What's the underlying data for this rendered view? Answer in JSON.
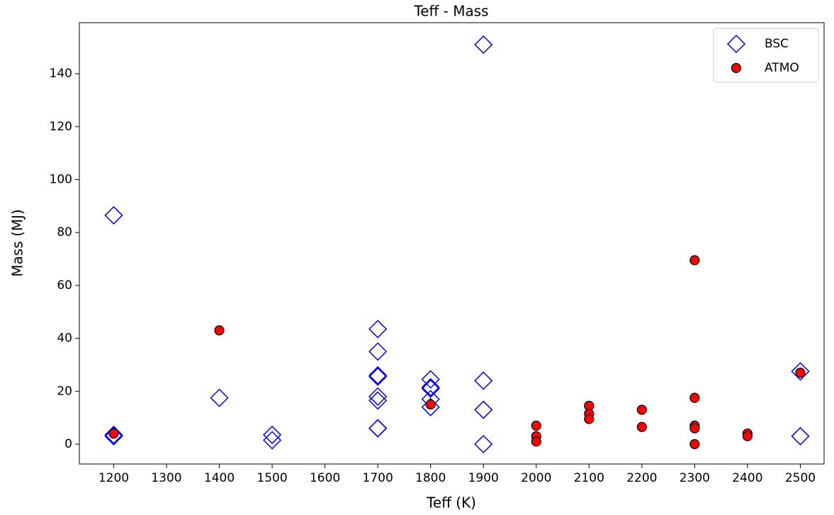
{
  "chart_data": {
    "type": "scatter",
    "title": "Teff - Mass",
    "x_label": "Teff (K)",
    "y_label": "Mass (MJ)",
    "xlim": [
      1135,
      2545
    ],
    "ylim": [
      -7.5,
      159.3
    ],
    "xticks": [
      1200,
      1300,
      1400,
      1500,
      1600,
      1700,
      1800,
      1900,
      2000,
      2100,
      2200,
      2300,
      2400,
      2500
    ],
    "yticks": [
      0,
      20,
      40,
      60,
      80,
      100,
      120,
      140
    ],
    "grid": false,
    "legend": "upper right",
    "series": [
      {
        "name": "BSC",
        "color": "#0000ff",
        "marker": "diamond",
        "x": [
          1200,
          1200,
          1200,
          1400,
          1500,
          1500,
          1700,
          1700,
          1700,
          1700,
          1700,
          1700,
          1700,
          1700,
          1800,
          1800,
          1800,
          1800,
          1800,
          1900,
          1900,
          1900,
          1900,
          2500,
          2500
        ],
        "values": [
          86.5,
          3.5,
          3,
          17.5,
          3.5,
          1.5,
          43.5,
          35,
          26,
          25.5,
          18,
          16.5,
          6,
          6,
          24.5,
          21.5,
          21,
          17,
          14,
          151,
          24,
          13,
          0,
          27.5,
          3
        ]
      },
      {
        "name": "ATMO",
        "color": "#ff0000",
        "marker": "circle",
        "x": [
          1200,
          1400,
          1800,
          2000,
          2000,
          2000,
          2100,
          2100,
          2100,
          2200,
          2200,
          2300,
          2300,
          2300,
          2300,
          2300,
          2400,
          2400,
          2500
        ],
        "values": [
          4,
          43,
          15,
          7,
          3,
          1,
          14.5,
          11.5,
          9.5,
          13,
          6.5,
          69.5,
          17.5,
          7,
          6,
          0,
          4,
          3,
          27
        ]
      }
    ]
  }
}
